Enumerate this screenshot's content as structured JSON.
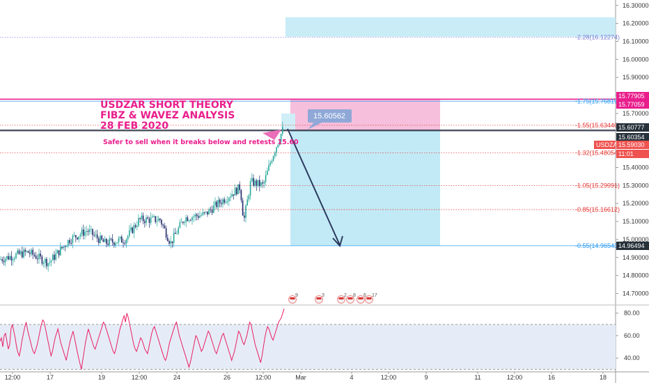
{
  "annotations": {
    "title_lines": [
      "USDZAR SHORT THEORY",
      "FIBZ & WAVEZ ANALYSIS",
      "28 FEB 2020"
    ],
    "note": "Safer to sell when it breaks below and retests 15.60",
    "price_callout": "15.60562"
  },
  "chart_data": {
    "type": "candlestick",
    "symbol": "USDZAR",
    "price_axis": {
      "range": [
        14.64,
        16.33
      ],
      "ticks": [
        "16.30000",
        "16.20000",
        "16.10000",
        "16.00000",
        "15.90000",
        "15.80000",
        "15.70000",
        "15.40000",
        "15.30000",
        "15.20000",
        "15.10000",
        "15.00000",
        "14.90000",
        "14.80000",
        "14.70000"
      ]
    },
    "time_axis": {
      "labels": [
        "12:00",
        "17",
        "19",
        "12:00",
        "24",
        "26",
        "12:00",
        "Mar",
        "4",
        "12:00",
        "9",
        "11",
        "12:00",
        "16",
        "18"
      ]
    },
    "fib_levels": [
      {
        "label": "-2.28(16.12274)",
        "value": 16.12274,
        "color": "#7b7fd6",
        "dotted": true
      },
      {
        "label": "-1.75(15.76819)",
        "value": 15.76819,
        "color": "#2196f3",
        "dotted": false
      },
      {
        "label": "-1.55(15.63440)",
        "value": 15.6344,
        "color": "#e53935",
        "dotted": true
      },
      {
        "label": "-1.32(15.48054)",
        "value": 15.48054,
        "color": "#e53935",
        "dotted": true
      },
      {
        "label": "-1.05(15.29991)",
        "value": 15.29991,
        "color": "#e53935",
        "dotted": true
      },
      {
        "label": "-0.85(15.16612)",
        "value": 15.16612,
        "color": "#e53935",
        "dotted": true
      },
      {
        "label": "-0.55(14.96543)",
        "value": 14.96543,
        "color": "#2196f3",
        "dotted": false
      }
    ],
    "price_badges": [
      {
        "text": "15.77905",
        "value": 15.77905,
        "bg": "#e91e8c",
        "fg": "#ffffff"
      },
      {
        "text": "15.77059",
        "value": 15.77059,
        "bg": "#e91e8c",
        "fg": "#ffffff"
      },
      {
        "text": "15.60777",
        "value": 15.60777,
        "bg": "#26313a",
        "fg": "#ffffff"
      },
      {
        "text": "15.60354",
        "value": 15.60354,
        "bg": "#26313a",
        "fg": "#ffffff"
      },
      {
        "text": "USDZAR",
        "value": 15.5903,
        "bg": "#ef5350",
        "fg": "#ffffff"
      },
      {
        "text": "15.59030",
        "value": 15.5903,
        "bg": "#ef5350",
        "fg": "#ffffff"
      },
      {
        "text": "11:01",
        "value": 15.55,
        "bg": "#ef5350",
        "fg": "#ffffff"
      },
      {
        "text": "14.96494",
        "value": 14.96494,
        "bg": "#26313a",
        "fg": "#ffffff"
      }
    ],
    "resistance_lines": [
      15.77905,
      15.60777,
      15.60354
    ],
    "position": {
      "entry": 15.6077,
      "stop": 15.779,
      "target": 14.965,
      "target_ext": 16.18
    },
    "rsi": {
      "ticks": [
        "80.00",
        "60.00",
        "40.00"
      ],
      "upper": 70,
      "lower": 30,
      "values": [
        55,
        58,
        50,
        60,
        62,
        55,
        48,
        52,
        66,
        70,
        64,
        58,
        50,
        45,
        42,
        48,
        56,
        62,
        68,
        72,
        65,
        60,
        55,
        50,
        46,
        44,
        48,
        52,
        58,
        64,
        70,
        74,
        72,
        66,
        60,
        54,
        48,
        42,
        46,
        52,
        58,
        62,
        66,
        60,
        54,
        50,
        46,
        42,
        38,
        44,
        50,
        56,
        60,
        64,
        58,
        52,
        46,
        40,
        35,
        30,
        38,
        46,
        54,
        60,
        66,
        62,
        58,
        54,
        50,
        48,
        52,
        56,
        60,
        64,
        68,
        72,
        70,
        66,
        62,
        58,
        54,
        50,
        46,
        44,
        48,
        54,
        60,
        66,
        70,
        74,
        78,
        72,
        80,
        76,
        70,
        64,
        58,
        52,
        48,
        46,
        50,
        54,
        58,
        56,
        52,
        48,
        46,
        44,
        50,
        56,
        62,
        66,
        68,
        64,
        60,
        56,
        52,
        48,
        44,
        40,
        38,
        42,
        48,
        54,
        58,
        62,
        66,
        70,
        72,
        66,
        60,
        56,
        52,
        48,
        44,
        40,
        36,
        32,
        36,
        42,
        48,
        54,
        60,
        58,
        54,
        50,
        46,
        48,
        52,
        56,
        60,
        64,
        62,
        58,
        54,
        50,
        46,
        44,
        48,
        52,
        56,
        60,
        62,
        58,
        54,
        50,
        46,
        42,
        38,
        42,
        46,
        52,
        58,
        64,
        62,
        58,
        54,
        52,
        56,
        60,
        66,
        72,
        70,
        64,
        58,
        52,
        48,
        44,
        40,
        36,
        42,
        50,
        58,
        64,
        68,
        66,
        62,
        58,
        56,
        60,
        64,
        68,
        72,
        74,
        76,
        80,
        84
      ]
    }
  },
  "colors": {
    "bull": "#26a69a",
    "bear": "#1f2a6b",
    "pink": "#e91e8c",
    "target_zone": "#bfe9f6",
    "stop_zone": "#f6bfdc",
    "arrow": "#2a3a5e"
  }
}
